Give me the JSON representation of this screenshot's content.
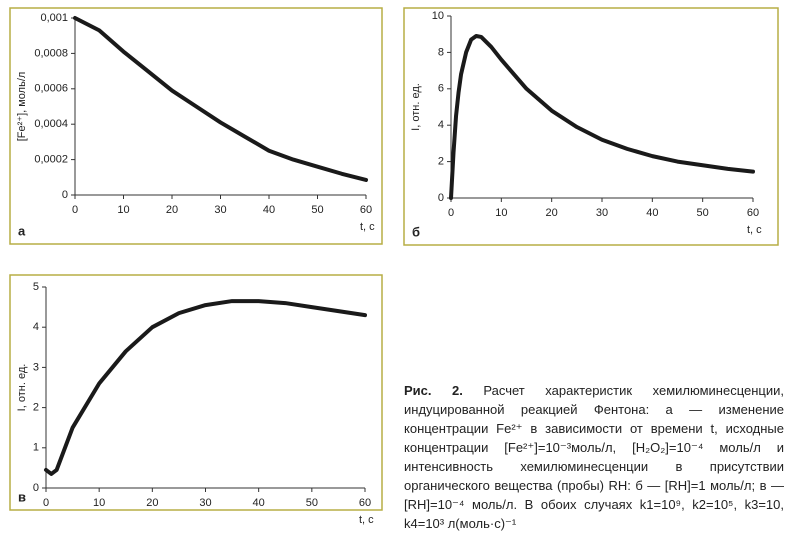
{
  "chart_data": [
    {
      "type": "line",
      "panel": "а",
      "ylabel": "[Fe²⁺], моль/л",
      "xlabel": "t, c",
      "color": "#1a1a1a",
      "x": [
        0,
        5,
        10,
        15,
        20,
        25,
        30,
        35,
        40,
        45,
        50,
        55,
        60
      ],
      "values": [
        0.001,
        0.00093,
        0.00081,
        0.0007,
        0.00059,
        0.0005,
        0.00041,
        0.00033,
        0.00025,
        0.0002,
        0.00016,
        0.00012,
        8.5e-05
      ],
      "xlim": [
        0,
        60
      ],
      "xticks": [
        0,
        10,
        20,
        30,
        40,
        50,
        60
      ],
      "ylim": [
        0,
        0.001
      ],
      "yticks": [
        0,
        {
          "value": 0.0002,
          "label": "0,0002"
        },
        {
          "value": 0.0004,
          "label": "0,0004"
        },
        {
          "value": 0.0006,
          "label": "0,0006"
        },
        {
          "value": 0.0008,
          "label": "0,0008"
        },
        {
          "value": 0.001,
          "label": "0,001"
        }
      ]
    },
    {
      "type": "line",
      "panel": "б",
      "ylabel": "I, отн. ед.",
      "xlabel": "t, c",
      "color": "#1a1a1a",
      "x": [
        0,
        0.5,
        1,
        1.5,
        2,
        3,
        4,
        5,
        6,
        8,
        10,
        15,
        20,
        25,
        30,
        35,
        40,
        45,
        50,
        55,
        60
      ],
      "values": [
        0,
        2.5,
        4.5,
        5.8,
        6.8,
        8.0,
        8.7,
        8.9,
        8.85,
        8.3,
        7.6,
        6.0,
        4.8,
        3.9,
        3.2,
        2.7,
        2.3,
        2.0,
        1.8,
        1.6,
        1.45
      ],
      "xlim": [
        0,
        60
      ],
      "xticks": [
        0,
        10,
        20,
        30,
        40,
        50,
        60
      ],
      "ylim": [
        0,
        10
      ],
      "yticks": [
        0,
        2,
        4,
        6,
        8,
        10
      ]
    },
    {
      "type": "line",
      "panel": "в",
      "ylabel": "I, отн. ед.",
      "xlabel": "t, c",
      "color": "#1a1a1a",
      "x": [
        0,
        1,
        2,
        5,
        10,
        15,
        20,
        25,
        30,
        35,
        40,
        45,
        50,
        55,
        60
      ],
      "values": [
        0.45,
        0.35,
        0.45,
        1.5,
        2.6,
        3.4,
        4.0,
        4.35,
        4.55,
        4.65,
        4.65,
        4.6,
        4.5,
        4.4,
        4.3
      ],
      "xlim": [
        0,
        60
      ],
      "xticks": [
        0,
        10,
        20,
        30,
        40,
        50,
        60
      ],
      "ylim": [
        0,
        5
      ],
      "yticks": [
        0,
        1,
        2,
        3,
        4,
        5
      ]
    }
  ],
  "caption": {
    "label": "Рис. 2.",
    "text": "Расчет характеристик хемилюминесценции, индуцированной реакцией Фентона: а — изменение концентрации Fe²⁺ в зависимости от времени t, исходные концентрации [Fe²⁺]=10⁻³моль/л, [H₂O₂]=10⁻⁴ моль/л и интенсивность хемилюминесценции в присутствии органического вещества (пробы) RH: б — [RH]=1 моль/л; в — [RH]=10⁻⁴ моль/л. В обоих случаях k1=10⁹, k2=10⁵, k3=10, k4=10³ л(моль·с)⁻¹"
  }
}
